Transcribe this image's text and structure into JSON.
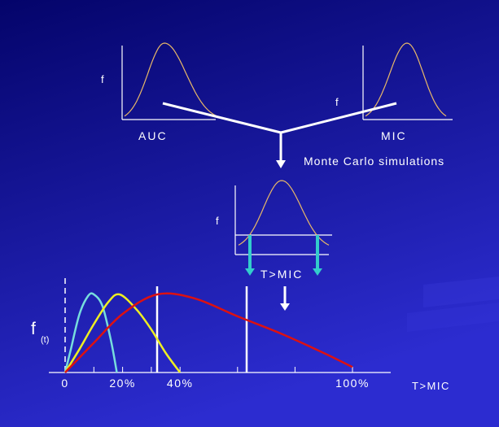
{
  "colors": {
    "background_dark": "#04046a",
    "background_light": "#2c2cd0",
    "axis": "#ffffff",
    "distribution_curve": "#e8b868",
    "threshold_arrow": "#33cccc",
    "curve_cyan": "#77dddd",
    "curve_yellow": "#eeee22",
    "curve_red": "#dd1111"
  },
  "auc_plot": {
    "ylabel": "f",
    "xlabel": "AUC"
  },
  "mic_plot": {
    "ylabel": "f",
    "xlabel": "MIC"
  },
  "simulation_label": "Monte Carlo simulations",
  "tmic_plot": {
    "ylabel": "f",
    "xlabel": "T>MIC"
  },
  "chart_data": {
    "type": "line",
    "ylabel_main": "f",
    "ylabel_sub": "(t)",
    "xlabel": "T>MIC",
    "x_ticks": [
      "0",
      "20%",
      "40%",
      "100%"
    ],
    "xlim": [
      0,
      100
    ],
    "series": [
      {
        "color": "#77dddd",
        "x": [
          0,
          2,
          5,
          8,
          10,
          13,
          16,
          18
        ],
        "y": [
          0,
          0.3,
          0.75,
          0.98,
          1.0,
          0.85,
          0.4,
          0.0
        ]
      },
      {
        "color": "#eeee22",
        "x": [
          0,
          5,
          10,
          15,
          19,
          25,
          30,
          35,
          40
        ],
        "y": [
          0,
          0.3,
          0.62,
          0.9,
          1.0,
          0.8,
          0.55,
          0.25,
          0.0
        ]
      },
      {
        "color": "#dd1111",
        "x": [
          0,
          10,
          20,
          32,
          45,
          60,
          75,
          90,
          100
        ],
        "y": [
          0,
          0.38,
          0.75,
          1.0,
          0.95,
          0.72,
          0.5,
          0.25,
          0.07
        ]
      }
    ]
  }
}
